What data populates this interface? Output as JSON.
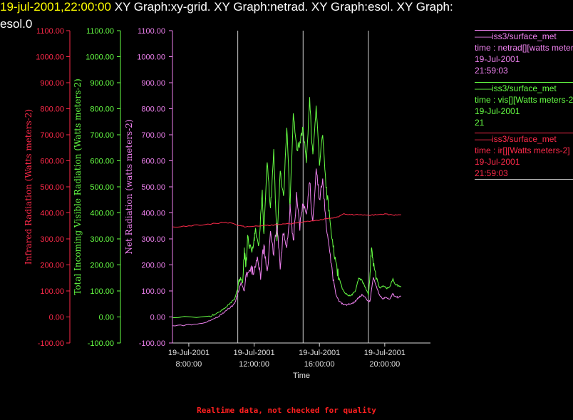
{
  "header": {
    "timestamp": "19-jul-2001,22:00:00",
    "titles": "XY Graph:xy-grid.  XY Graph:netrad.  XY Graph:esol.  XY Graph:",
    "titles_line2": "esol.0"
  },
  "footer": "Realtime data, not checked for quality",
  "colors": {
    "red": "#ff2a4a",
    "green": "#66ff44",
    "violet": "#ee80ee",
    "axis": "#d8d8d8"
  },
  "legend": [
    {
      "line1": "——iss3/surface_met",
      "line2": "time : netrad[][watts meters-2]",
      "line3": "19-Jul-2001",
      "line4": "21:59:03",
      "color": "#ee80ee"
    },
    {
      "line1": "——iss3/surface_met",
      "line2": "time : vis[][Watts meters-2]",
      "line3": "19-Jul-2001",
      "line4": "21",
      "color": "#66ff44"
    },
    {
      "line1": "——iss3/surface_met",
      "line2": "time : ir[][Watts meters-2]",
      "line3": "19-Jul-2001",
      "line4": "21:59:03",
      "color": "#ff2a4a"
    }
  ],
  "chart_data": {
    "type": "line",
    "xlabel": "Time",
    "x_range_hours": [
      7.0,
      22.8
    ],
    "x_ticks": [
      {
        "h": 8,
        "d": "19-Jul-2001",
        "t": "8:00:00"
      },
      {
        "h": 12,
        "d": "19-Jul-2001",
        "t": "12:00:00"
      },
      {
        "h": 16,
        "d": "19-Jul-2001",
        "t": "16:00:00"
      },
      {
        "h": 20,
        "d": "19-Jul-2001",
        "t": "20:00:00"
      }
    ],
    "grid_x_hours": [
      11,
      15,
      19
    ],
    "axes": [
      {
        "label": "Infrared Radiation (Watts meters-2)",
        "color": "#ff2a4a",
        "range": [
          -100,
          1100
        ]
      },
      {
        "label": "Total Incoming Visible Radiation (Watts meters-2)",
        "color": "#66ff44",
        "range": [
          -100,
          1100
        ]
      },
      {
        "label": "Net Radiation (watts meters-2)",
        "color": "#ee80ee",
        "range": [
          -100,
          1100
        ]
      }
    ],
    "ticks": [
      "-100.00",
      "0.00",
      "100.00",
      "200.00",
      "300.00",
      "400.00",
      "500.00",
      "600.00",
      "700.00",
      "800.00",
      "900.00",
      "1000.00",
      "1100.00"
    ],
    "series": [
      {
        "name": "iss3/surface_met time : vis",
        "color": "#66ff44",
        "x": [
          7.0,
          9.2,
          9.6,
          10.0,
          10.4,
          10.8,
          11.0,
          11.1,
          11.3,
          11.4,
          11.5,
          11.6,
          11.8,
          12.0,
          12.1,
          12.3,
          12.5,
          12.6,
          12.8,
          13.0,
          13.2,
          13.4,
          13.6,
          13.8,
          14.0,
          14.2,
          14.4,
          14.6,
          14.8,
          15.0,
          15.2,
          15.4,
          15.6,
          15.8,
          16.0,
          16.2,
          16.4,
          16.6,
          16.8,
          17.0,
          17.2,
          17.4,
          17.6,
          17.8,
          18.0,
          18.2,
          18.4,
          18.6,
          18.8,
          19.0,
          19.1,
          19.2,
          19.3,
          19.5,
          19.7,
          19.9,
          20.1,
          20.3,
          20.5,
          20.6,
          20.8,
          21.0
        ],
        "y": [
          0,
          0,
          10,
          25,
          45,
          70,
          110,
          160,
          130,
          250,
          200,
          300,
          250,
          300,
          330,
          280,
          470,
          320,
          600,
          400,
          640,
          300,
          560,
          450,
          730,
          420,
          780,
          650,
          660,
          730,
          590,
          840,
          610,
          800,
          600,
          700,
          500,
          400,
          280,
          200,
          150,
          110,
          90,
          80,
          85,
          100,
          150,
          140,
          115,
          85,
          160,
          280,
          200,
          150,
          110,
          120,
          110,
          115,
          145,
          130,
          120,
          115
        ]
      },
      {
        "name": "iss3/surface_met time : netrad",
        "color": "#ee80ee",
        "x": [
          7.0,
          8.0,
          9.0,
          9.6,
          10.0,
          10.4,
          10.8,
          11.0,
          11.2,
          11.4,
          11.5,
          11.6,
          11.8,
          12.0,
          12.2,
          12.4,
          12.6,
          12.8,
          13.0,
          13.2,
          13.4,
          13.6,
          13.8,
          14.0,
          14.2,
          14.4,
          14.6,
          14.8,
          15.0,
          15.2,
          15.4,
          15.6,
          15.8,
          16.0,
          16.2,
          16.4,
          16.6,
          16.8,
          17.0,
          17.2,
          17.4,
          17.6,
          17.8,
          18.0,
          18.2,
          18.4,
          18.6,
          18.8,
          19.0,
          19.1,
          19.2,
          19.3,
          19.5,
          19.7,
          19.9,
          20.1,
          20.3,
          20.5,
          20.6,
          20.8,
          21.0
        ],
        "y": [
          -35,
          -30,
          -20,
          -5,
          10,
          30,
          50,
          90,
          130,
          100,
          160,
          170,
          180,
          170,
          220,
          160,
          280,
          170,
          330,
          240,
          360,
          180,
          330,
          250,
          420,
          280,
          470,
          350,
          440,
          380,
          520,
          360,
          560,
          460,
          520,
          350,
          250,
          170,
          90,
          60,
          50,
          45,
          50,
          50,
          60,
          75,
          85,
          75,
          60,
          60,
          110,
          150,
          115,
          80,
          70,
          75,
          70,
          90,
          80,
          75,
          80
        ]
      },
      {
        "name": "iss3/surface_met time : ir",
        "color": "#ff2a4a",
        "x": [
          7.0,
          8.0,
          9.0,
          10.0,
          10.5,
          11.0,
          11.5,
          12.0,
          12.5,
          13.0,
          13.5,
          14.0,
          14.5,
          15.0,
          15.5,
          16.0,
          16.5,
          17.0,
          17.5,
          18.0,
          18.5,
          19.0,
          19.5,
          20.0,
          20.5,
          21.0
        ],
        "y": [
          345,
          350,
          355,
          362,
          362,
          352,
          346,
          348,
          350,
          352,
          355,
          358,
          360,
          365,
          370,
          372,
          378,
          382,
          395,
          393,
          392,
          390,
          393,
          395,
          392,
          393
        ]
      }
    ]
  }
}
